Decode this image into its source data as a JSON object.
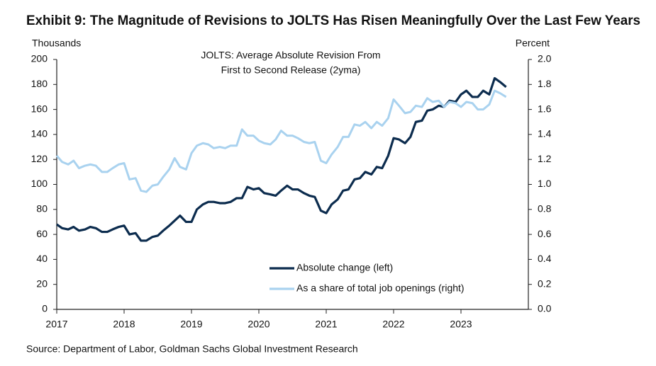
{
  "chart_data": {
    "type": "line",
    "title": "Exhibit 9: The Magnitude of Revisions to JOLTS Has Risen Meaningfully Over the Last Few Years",
    "annotation": [
      "JOLTS: Average Absolute Revision From",
      "First to Second Release (2yma)"
    ],
    "ylabel": "Thousands",
    "y2label": "Percent",
    "source": "Source: Department of Labor, Goldman Sachs Global Investment Research",
    "x": [
      2017,
      2017.08,
      2017.17,
      2017.25,
      2017.33,
      2017.42,
      2017.5,
      2017.58,
      2017.67,
      2017.75,
      2017.83,
      2017.92,
      2018,
      2018.08,
      2018.17,
      2018.25,
      2018.33,
      2018.42,
      2018.5,
      2018.58,
      2018.67,
      2018.75,
      2018.83,
      2018.92,
      2019,
      2019.08,
      2019.17,
      2019.25,
      2019.33,
      2019.42,
      2019.5,
      2019.58,
      2019.67,
      2019.75,
      2019.83,
      2019.92,
      2020,
      2020.08,
      2020.17,
      2020.25,
      2020.33,
      2020.42,
      2020.5,
      2020.58,
      2020.67,
      2020.75,
      2020.83,
      2020.92,
      2021,
      2021.08,
      2021.17,
      2021.25,
      2021.33,
      2021.42,
      2021.5,
      2021.58,
      2021.67,
      2021.75,
      2021.83,
      2021.92,
      2022,
      2022.08,
      2022.17,
      2022.25,
      2022.33,
      2022.42,
      2022.5,
      2022.58,
      2022.67,
      2022.75,
      2022.83,
      2022.92,
      2023,
      2023.08,
      2023.17,
      2023.25,
      2023.33,
      2023.42,
      2023.5,
      2023.58,
      2023.67
    ],
    "series": [
      {
        "name": "Absolute change (left)",
        "color": "#0c2c4e",
        "axis": "y",
        "values": [
          68,
          65,
          64,
          66,
          63,
          64,
          66,
          65,
          62,
          62,
          64,
          66,
          67,
          60,
          61,
          55,
          55,
          58,
          59,
          63,
          67,
          71,
          75,
          70,
          70,
          80,
          84,
          86,
          86,
          85,
          85,
          86,
          89,
          89,
          98,
          96,
          97,
          93,
          92,
          91,
          95,
          99,
          96,
          96,
          93,
          91,
          90,
          79,
          77,
          84,
          88,
          95,
          96,
          104,
          105,
          110,
          108,
          114,
          113,
          123,
          137,
          136,
          133,
          138,
          150,
          151,
          159,
          160,
          163,
          162,
          167,
          166,
          172,
          175,
          170,
          170,
          175,
          172,
          185,
          182,
          178
        ]
      },
      {
        "name": "As a share of total job openings (right)",
        "color": "#a9d2ef",
        "axis": "y2",
        "values": [
          1.23,
          1.18,
          1.16,
          1.19,
          1.13,
          1.15,
          1.16,
          1.15,
          1.1,
          1.1,
          1.13,
          1.16,
          1.17,
          1.04,
          1.05,
          0.95,
          0.94,
          0.99,
          1.0,
          1.06,
          1.12,
          1.21,
          1.14,
          1.12,
          1.25,
          1.31,
          1.33,
          1.32,
          1.29,
          1.3,
          1.29,
          1.31,
          1.31,
          1.44,
          1.39,
          1.39,
          1.35,
          1.33,
          1.32,
          1.36,
          1.43,
          1.39,
          1.39,
          1.37,
          1.34,
          1.33,
          1.34,
          1.19,
          1.17,
          1.24,
          1.3,
          1.38,
          1.38,
          1.48,
          1.47,
          1.5,
          1.45,
          1.5,
          1.47,
          1.53,
          1.68,
          1.63,
          1.57,
          1.58,
          1.63,
          1.62,
          1.69,
          1.66,
          1.67,
          1.62,
          1.66,
          1.65,
          1.62,
          1.66,
          1.65,
          1.6,
          1.6,
          1.64,
          1.75,
          1.73,
          1.7
        ]
      }
    ],
    "xlim": [
      2017,
      2024
    ],
    "xticks": [
      2017,
      2018,
      2019,
      2020,
      2021,
      2022,
      2023
    ],
    "ylim": [
      0,
      200
    ],
    "yticks": [
      0,
      20,
      40,
      60,
      80,
      100,
      120,
      140,
      160,
      180,
      200
    ],
    "y2lim": [
      0,
      2
    ],
    "y2ticks": [
      {
        "value": 0,
        "label": "0.0"
      },
      0.2,
      0.4,
      0.6,
      0.8,
      {
        "value": 1,
        "label": "1.0"
      },
      1.2,
      1.4,
      1.6,
      1.8,
      {
        "value": 2,
        "label": "2.0"
      }
    ],
    "grid": false
  }
}
